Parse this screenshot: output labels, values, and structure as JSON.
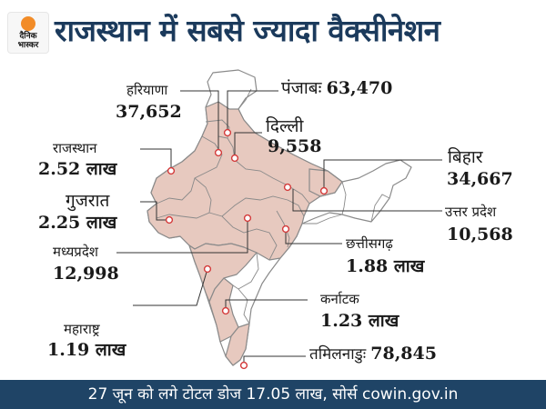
{
  "header": {
    "title": "राजस्थान में सबसे ज्यादा वैक्सीनेशन"
  },
  "logo": {
    "line1": "दैनिक",
    "line2": "भास्कर"
  },
  "colors": {
    "highlight_fill": "#e7c9bf",
    "base_fill": "#ffffff",
    "border": "#8a8a8a",
    "marker": "#d43a3a",
    "title": "#1b3a5c",
    "footer_bg": "#1f4466"
  },
  "states": {
    "haryana": {
      "name": "हरियाणा",
      "value": "37,652"
    },
    "punjab": {
      "name": "पंजाबः",
      "value": "63,470"
    },
    "delhi": {
      "name": "दिल्ली",
      "value": "9,558"
    },
    "rajasthan": {
      "name": "राजस्थान",
      "value": "2.52 लाख"
    },
    "bihar": {
      "name": "बिहार",
      "value": "34,667"
    },
    "gujarat": {
      "name": "गुजरात",
      "value": "2.25 लाख"
    },
    "up": {
      "name": "उत्तर प्रदेश",
      "value": "10,568"
    },
    "chhattisgarh": {
      "name": "छत्तीसगढ़",
      "value": "1.88 लाख"
    },
    "mp": {
      "name": "मध्यप्रदेश",
      "value": "12,998"
    },
    "karnataka": {
      "name": "कर्नाटक",
      "value": "1.23 लाख"
    },
    "maharashtra": {
      "name": "महाराष्ट्र",
      "value": "1.19 लाख"
    },
    "tamilnadu": {
      "name": "तमिलनाडुः",
      "value": "78,845"
    }
  },
  "footer": {
    "text": "27 जून को लगे टोटल डोज 17.05 लाख, सोर्स cowin.gov.in"
  }
}
